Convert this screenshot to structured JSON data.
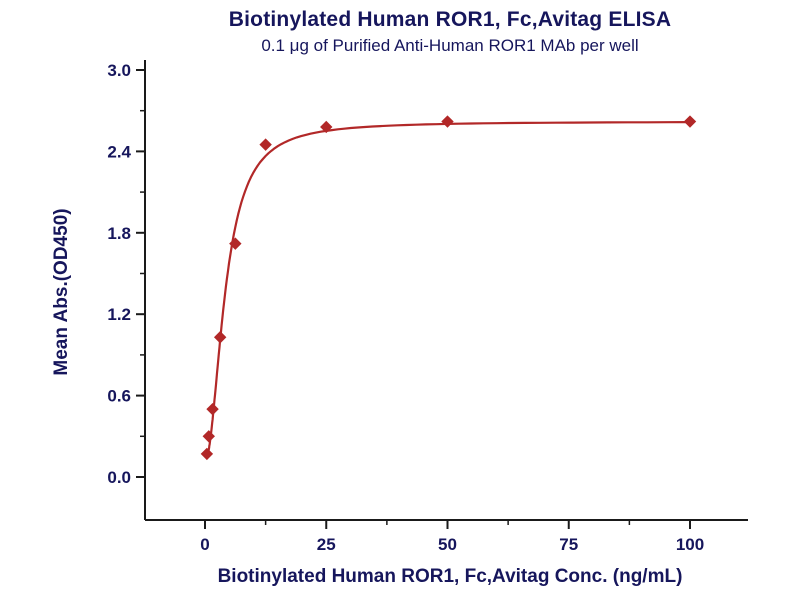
{
  "chart_data": {
    "type": "scatter",
    "title": "Biotinylated Human ROR1, Fc,Avitag ELISA",
    "subtitle": "0.1 μg of Purified Anti-Human ROR1 MAb per well",
    "xlabel": "Biotinylated Human ROR1, Fc,Avitag Conc. (ng/mL)",
    "ylabel": "Mean Abs.(OD450)",
    "points": [
      {
        "x": 0.39,
        "y": 0.17
      },
      {
        "x": 0.78,
        "y": 0.3
      },
      {
        "x": 1.56,
        "y": 0.5
      },
      {
        "x": 3.13,
        "y": 1.03
      },
      {
        "x": 6.25,
        "y": 1.72
      },
      {
        "x": 12.5,
        "y": 2.45
      },
      {
        "x": 25,
        "y": 2.58
      },
      {
        "x": 50,
        "y": 2.62
      },
      {
        "x": 100,
        "y": 2.62
      }
    ],
    "fit_4pl": {
      "a": 0.12,
      "b": 2.0,
      "c": 4.2,
      "d": 2.62
    },
    "xticks": [
      "0",
      "25",
      "50",
      "75",
      "100"
    ],
    "xtick_values": [
      0,
      25,
      50,
      75,
      100
    ],
    "xticks_minor": [
      12.5,
      37.5,
      62.5,
      87.5
    ],
    "yticks": [
      "0.0",
      "0.6",
      "1.2",
      "1.8",
      "2.4",
      "3.0"
    ],
    "ytick_values": [
      0.0,
      0.6,
      1.2,
      1.8,
      2.4,
      3.0
    ],
    "yticks_minor": [
      0.3,
      0.9,
      1.5,
      2.1,
      2.7
    ],
    "xlim": [
      -12.4,
      112
    ],
    "ylim": [
      -0.32,
      3.0
    ],
    "legend": "none",
    "grid": false,
    "colors": {
      "series": "#b22828",
      "axis": "#1a1a1a",
      "text": "#16165c",
      "background": "#ffffff"
    }
  }
}
